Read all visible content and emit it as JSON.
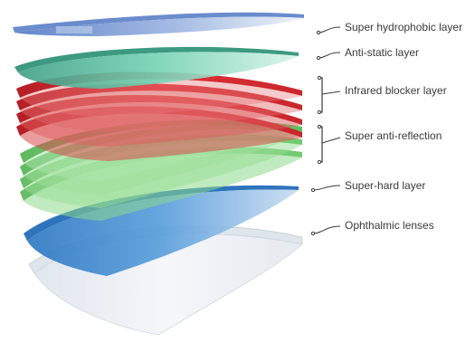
{
  "labels": {
    "super_hydrophobic": "Super hydrophobic layer",
    "anti_static": "Anti-static layer",
    "infrared_blocker": "Infrared blocker layer",
    "super_anti_reflection": "Super anti-reflection",
    "super_hard": "Super-hard layer",
    "ophthalmic_lenses": "Ophthalmic lenses"
  },
  "colors": {
    "hydrophobic": "#6f8fd0",
    "anti_static": "#6ecfb0",
    "infrared": "#d62a2f",
    "anti_reflection": "#5cc35a",
    "super_hard": "#3b86cf",
    "lens": "#e9eef3"
  }
}
